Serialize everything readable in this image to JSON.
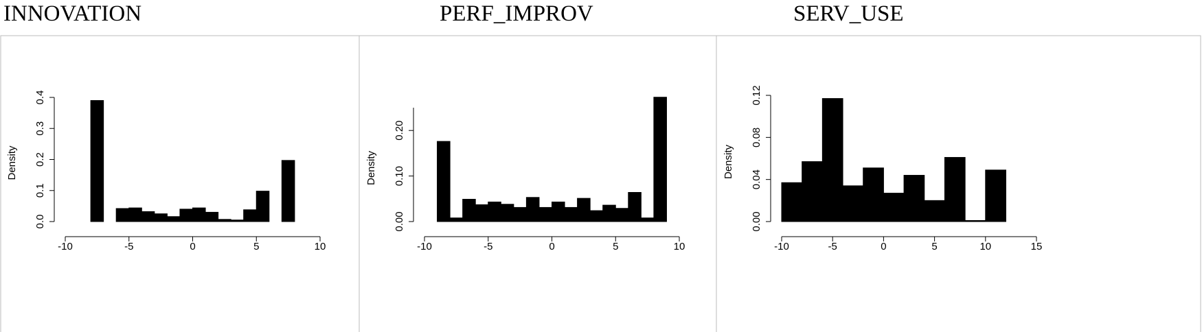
{
  "chart_data": [
    {
      "type": "histogram",
      "title": "INNOVATION",
      "ylabel": "Density",
      "color": "#000000",
      "bins": [
        -8,
        -7,
        -6,
        -5,
        -4,
        -3,
        -2,
        -1,
        0,
        1,
        2,
        3,
        4,
        5,
        6,
        7,
        8
      ],
      "values": [
        0.39,
        0,
        0.042,
        0.044,
        0.032,
        0.025,
        0.016,
        0.04,
        0.044,
        0.03,
        0.007,
        0.005,
        0.038,
        0.098,
        0,
        0.197
      ],
      "xlim": [
        -10,
        10
      ],
      "xticks": [
        -10,
        -5,
        0,
        5,
        10
      ],
      "ylim": [
        0,
        0.4
      ],
      "yticks": [
        {
          "value": 0,
          "label": "0.0"
        },
        0.1,
        0.2,
        0.3,
        0.4
      ]
    },
    {
      "type": "histogram",
      "title": "PERF_IMPROV",
      "ylabel": "Density",
      "color": "#000000",
      "bins": [
        -9,
        -8,
        -7,
        -6,
        -5,
        -4,
        -3,
        -2,
        -1,
        0,
        1,
        2,
        3,
        4,
        5,
        6,
        7,
        8,
        9
      ],
      "values": [
        0.176,
        0.008,
        0.049,
        0.037,
        0.043,
        0.038,
        0.031,
        0.053,
        0.031,
        0.043,
        0.031,
        0.051,
        0.024,
        0.036,
        0.029,
        0.064,
        0.008,
        0.273
      ],
      "xlim": [
        -10,
        10
      ],
      "xticks": [
        -10,
        -5,
        0,
        5,
        10
      ],
      "ylim": [
        0,
        0.25
      ],
      "yticks": [
        {
          "value": 0,
          "label": "0.00"
        },
        {
          "value": 0.1,
          "label": "0.10"
        },
        {
          "value": 0.2,
          "label": "0.20"
        }
      ]
    },
    {
      "type": "histogram",
      "title": "SERV_USE",
      "ylabel": "Density",
      "color": "#000000",
      "bins": [
        -10,
        -8,
        -6,
        -4,
        -2,
        0,
        2,
        4,
        6,
        8,
        10,
        12
      ],
      "values": [
        0.037,
        0.057,
        0.117,
        0.034,
        0.051,
        0.027,
        0.044,
        0.02,
        0.061,
        0.001,
        0.049
      ],
      "xlim": [
        -10,
        15
      ],
      "xticks": [
        -10,
        -5,
        0,
        5,
        10,
        15
      ],
      "ylim": [
        0,
        0.12
      ],
      "yticks": [
        {
          "value": 0,
          "label": "0.00"
        },
        {
          "value": 0.04,
          "label": "0.04"
        },
        {
          "value": 0.08,
          "label": "0.08"
        },
        0.12
      ]
    }
  ]
}
